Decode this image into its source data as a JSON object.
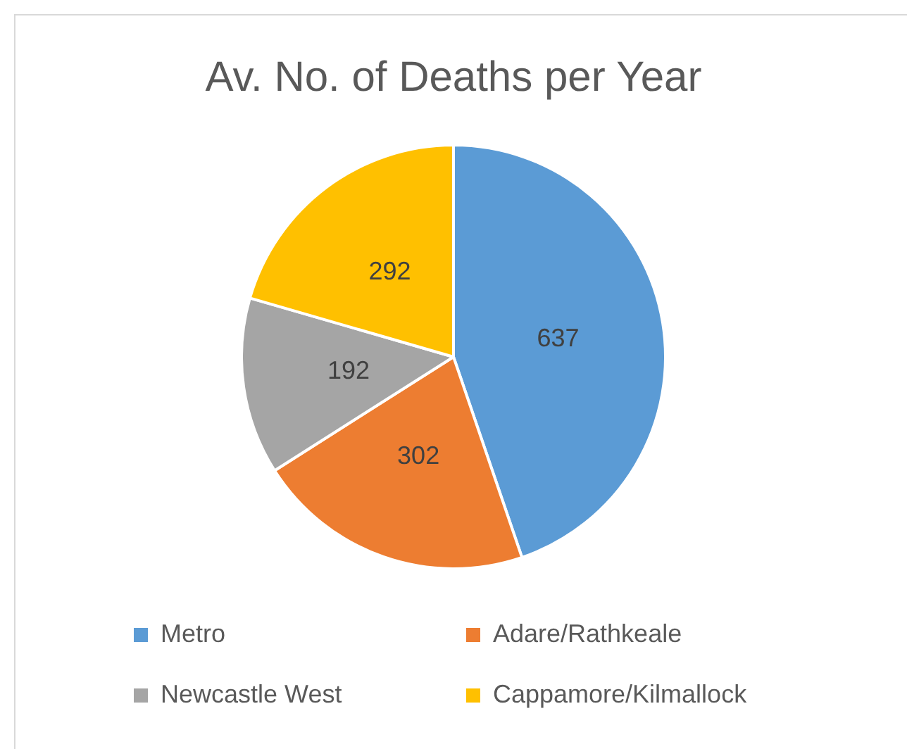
{
  "chart_data": {
    "type": "pie",
    "title": "Av. No. of Deaths per Year",
    "categories": [
      "Metro",
      "Adare/Rathkeale",
      "Newcastle West",
      "Cappamore/Kilmallock"
    ],
    "values": [
      637,
      302,
      192,
      292
    ],
    "colors": [
      "#5b9bd5",
      "#ed7d31",
      "#a5a5a5",
      "#ffc000"
    ],
    "data_labels": true,
    "legend": "bottom"
  }
}
